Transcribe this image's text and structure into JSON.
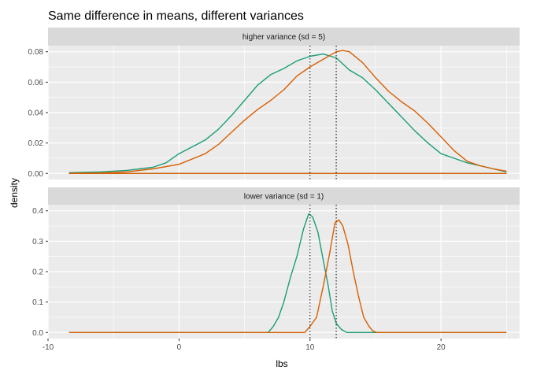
{
  "chart_data": {
    "type": "area",
    "title": "Same difference in means, different variances",
    "xlabel": "lbs",
    "ylabel": "density",
    "xlim": [
      -10,
      26
    ],
    "x_ticks": [
      "-10",
      "0",
      "10",
      "20"
    ],
    "colors": {
      "group_a": "#1b9e77",
      "group_b": "#d95f02",
      "panel_bg": "#ebebeb",
      "strip_bg": "#d9d9d9",
      "grid": "#ffffff"
    },
    "panels": [
      {
        "strip_label": "higher variance (sd = 5)",
        "ylim": [
          -0.004,
          0.084
        ],
        "y_ticks": [
          0,
          0.02,
          0.04,
          0.06,
          0.08
        ],
        "y_tick_labels": [
          "0.00",
          "0.02",
          "0.04",
          "0.06",
          "0.08"
        ],
        "vlines": [
          10,
          12
        ],
        "series": [
          {
            "color": "#1b9e77",
            "points": [
              [
                -8.4,
                0.0005
              ],
              [
                -6,
                0.001
              ],
              [
                -4,
                0.002
              ],
              [
                -2,
                0.004
              ],
              [
                -1,
                0.007
              ],
              [
                0,
                0.013
              ],
              [
                2,
                0.022
              ],
              [
                3,
                0.029
              ],
              [
                4,
                0.038
              ],
              [
                5,
                0.048
              ],
              [
                6,
                0.058
              ],
              [
                7,
                0.065
              ],
              [
                8,
                0.069
              ],
              [
                9,
                0.074
              ],
              [
                10,
                0.077
              ],
              [
                11,
                0.0785
              ],
              [
                12,
                0.076
              ],
              [
                13,
                0.068
              ],
              [
                14,
                0.063
              ],
              [
                15,
                0.055
              ],
              [
                16,
                0.046
              ],
              [
                17,
                0.037
              ],
              [
                18,
                0.028
              ],
              [
                19,
                0.02
              ],
              [
                20,
                0.013
              ],
              [
                21,
                0.01
              ],
              [
                22,
                0.007
              ],
              [
                23,
                0.005
              ],
              [
                24,
                0.003
              ],
              [
                25,
                0.001
              ]
            ],
            "baseline": [
              [
                -8.4,
                0.0
              ],
              [
                25,
                0.0
              ]
            ]
          },
          {
            "color": "#d95f02",
            "points": [
              [
                -8.4,
                0.0001
              ],
              [
                -6,
                0.0003
              ],
              [
                -4,
                0.001
              ],
              [
                -2,
                0.003
              ],
              [
                0,
                0.006
              ],
              [
                2,
                0.013
              ],
              [
                3,
                0.019
              ],
              [
                4,
                0.027
              ],
              [
                5,
                0.035
              ],
              [
                6,
                0.042
              ],
              [
                7,
                0.048
              ],
              [
                8,
                0.055
              ],
              [
                9,
                0.064
              ],
              [
                10,
                0.07
              ],
              [
                11,
                0.075
              ],
              [
                12,
                0.08
              ],
              [
                12.5,
                0.0808
              ],
              [
                13,
                0.08
              ],
              [
                14,
                0.073
              ],
              [
                15,
                0.063
              ],
              [
                16,
                0.054
              ],
              [
                17,
                0.047
              ],
              [
                18,
                0.041
              ],
              [
                19,
                0.033
              ],
              [
                20,
                0.024
              ],
              [
                21,
                0.015
              ],
              [
                22,
                0.008
              ],
              [
                23,
                0.005
              ],
              [
                24,
                0.003
              ],
              [
                25,
                0.0015
              ]
            ],
            "baseline": [
              [
                -8.4,
                0.0
              ],
              [
                25,
                0.0
              ]
            ]
          }
        ]
      },
      {
        "strip_label": "lower variance (sd = 1)",
        "ylim": [
          -0.02,
          0.42
        ],
        "y_ticks": [
          0,
          0.1,
          0.2,
          0.3,
          0.4
        ],
        "y_tick_labels": [
          "0.0",
          "0.1",
          "0.2",
          "0.3",
          "0.4"
        ],
        "vlines": [
          10,
          12
        ],
        "series": [
          {
            "color": "#1b9e77",
            "points": [
              [
                -8.4,
                0
              ],
              [
                6.8,
                0
              ],
              [
                7.2,
                0.02
              ],
              [
                7.6,
                0.05
              ],
              [
                8,
                0.1
              ],
              [
                8.5,
                0.18
              ],
              [
                9,
                0.25
              ],
              [
                9.5,
                0.34
              ],
              [
                9.9,
                0.39
              ],
              [
                10.2,
                0.38
              ],
              [
                10.6,
                0.33
              ],
              [
                11,
                0.24
              ],
              [
                11.4,
                0.15
              ],
              [
                11.7,
                0.07
              ],
              [
                12,
                0.03
              ],
              [
                12.4,
                0.01
              ],
              [
                12.8,
                0
              ],
              [
                25,
                0
              ]
            ]
          },
          {
            "color": "#d95f02",
            "points": [
              [
                -8.4,
                0
              ],
              [
                9.6,
                0
              ],
              [
                10,
                0.02
              ],
              [
                10.5,
                0.05
              ],
              [
                11,
                0.15
              ],
              [
                11.5,
                0.26
              ],
              [
                11.9,
                0.36
              ],
              [
                12.2,
                0.37
              ],
              [
                12.5,
                0.35
              ],
              [
                12.9,
                0.29
              ],
              [
                13.3,
                0.2
              ],
              [
                13.7,
                0.12
              ],
              [
                14.1,
                0.05
              ],
              [
                14.5,
                0.02
              ],
              [
                14.8,
                0.005
              ],
              [
                15.1,
                0
              ],
              [
                25,
                0
              ]
            ]
          }
        ]
      }
    ]
  }
}
